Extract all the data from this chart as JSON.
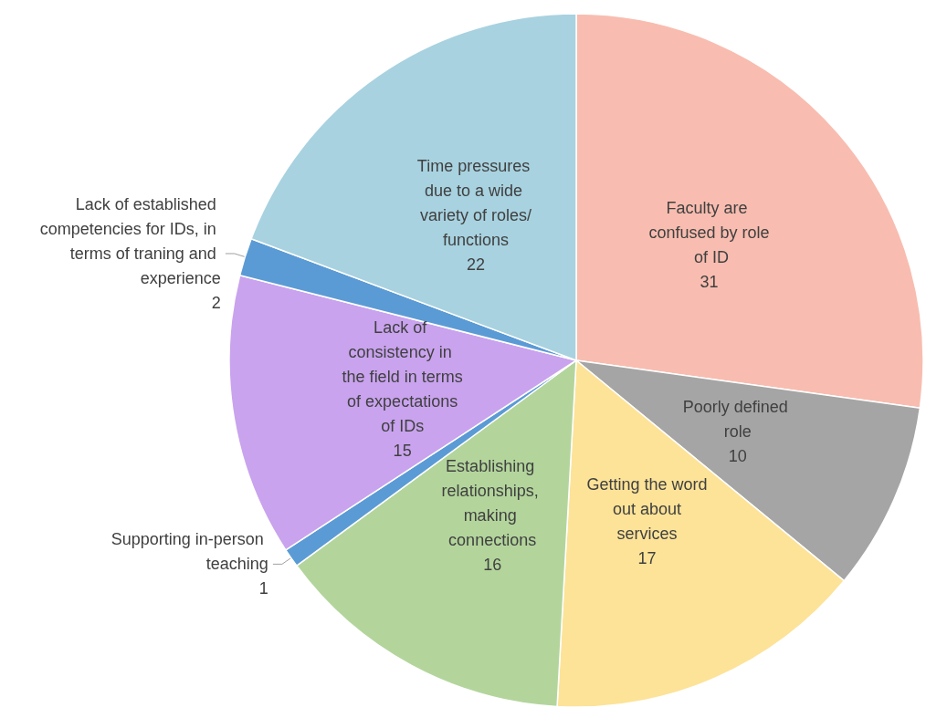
{
  "chart_data": {
    "type": "pie",
    "categories": [
      "Faculty are confused by role of ID",
      "Poorly defined role",
      "Getting the word out about services",
      "Establishing relationships, making connections",
      "Supporting in-person teaching",
      "Lack of consistency in the field in terms of expectations of IDs",
      "Lack of established competencies for IDs, in terms of traning and experience",
      "Time pressures due to a wide variety of roles/functions"
    ],
    "values": [
      31,
      10,
      17,
      16,
      1,
      15,
      2,
      22
    ],
    "colors": [
      "#f8bdb0",
      "#a5a5a5",
      "#fde398",
      "#b3d59c",
      "#5b9bd5",
      "#c9a3ee",
      "#5b9bd5",
      "#a8d2e0"
    ],
    "data_labels": true,
    "legend": false
  }
}
